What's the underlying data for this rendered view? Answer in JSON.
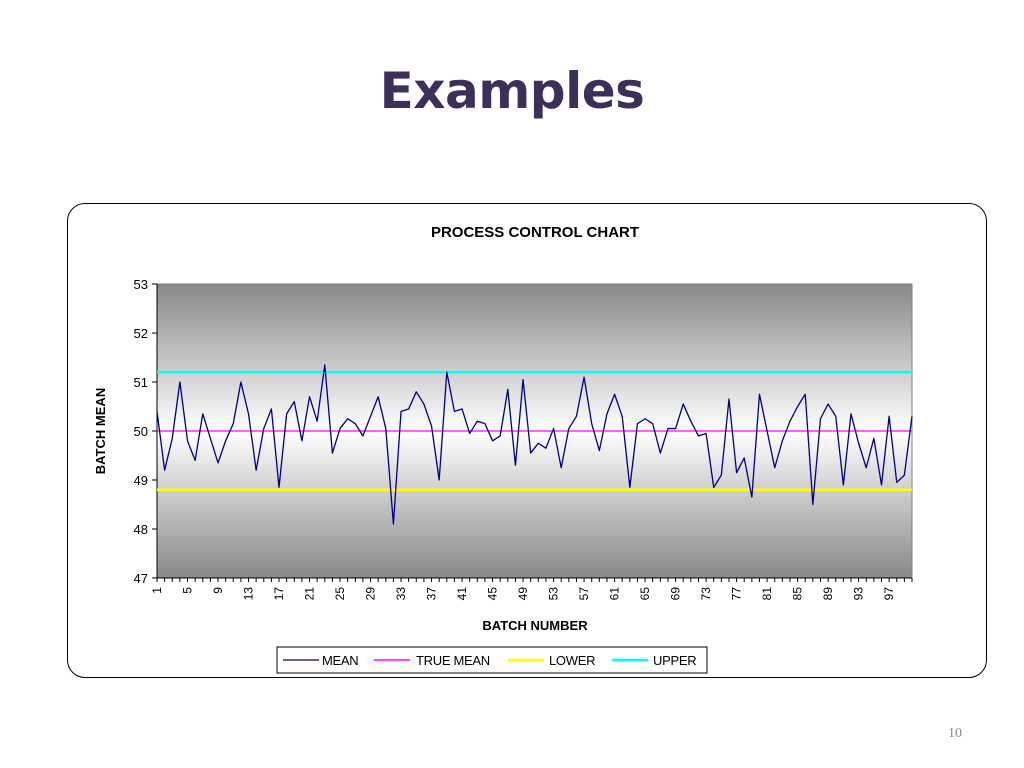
{
  "slide": {
    "title": "Examples",
    "page_number": "10"
  },
  "chart_data": {
    "type": "line",
    "title": "PROCESS CONTROL CHART",
    "xlabel": "BATCH NUMBER",
    "ylabel": "BATCH MEAN",
    "ylim": [
      47,
      53
    ],
    "yticks": [
      47,
      48,
      49,
      50,
      51,
      52,
      53
    ],
    "xlim": [
      1,
      100
    ],
    "xtick_labels": [
      1,
      5,
      9,
      13,
      17,
      21,
      25,
      29,
      33,
      37,
      41,
      45,
      49,
      53,
      57,
      61,
      65,
      69,
      73,
      77,
      81,
      85,
      89,
      93,
      97
    ],
    "legend_position": "bottom",
    "grid": false,
    "background": "gradient-gray",
    "x": [
      1,
      2,
      3,
      4,
      5,
      6,
      7,
      8,
      9,
      10,
      11,
      12,
      13,
      14,
      15,
      16,
      17,
      18,
      19,
      20,
      21,
      22,
      23,
      24,
      25,
      26,
      27,
      28,
      29,
      30,
      31,
      32,
      33,
      34,
      35,
      36,
      37,
      38,
      39,
      40,
      41,
      42,
      43,
      44,
      45,
      46,
      47,
      48,
      49,
      50,
      51,
      52,
      53,
      54,
      55,
      56,
      57,
      58,
      59,
      60,
      61,
      62,
      63,
      64,
      65,
      66,
      67,
      68,
      69,
      70,
      71,
      72,
      73,
      74,
      75,
      76,
      77,
      78,
      79,
      80,
      81,
      82,
      83,
      84,
      85,
      86,
      87,
      88,
      89,
      90,
      91,
      92,
      93,
      94,
      95,
      96,
      97,
      98,
      99,
      100
    ],
    "series": [
      {
        "name": "MEAN",
        "color": "#000080",
        "values": [
          50.4,
          49.2,
          49.85,
          51.0,
          49.8,
          49.4,
          50.35,
          49.85,
          49.35,
          49.8,
          50.15,
          51.0,
          50.35,
          49.2,
          50.05,
          50.45,
          48.85,
          50.35,
          50.6,
          49.8,
          50.7,
          50.2,
          51.35,
          49.55,
          50.05,
          50.25,
          50.15,
          49.9,
          50.3,
          50.7,
          50.05,
          48.1,
          50.4,
          50.45,
          50.8,
          50.55,
          50.1,
          49.0,
          51.2,
          50.4,
          50.45,
          49.95,
          50.2,
          50.15,
          49.8,
          49.9,
          50.85,
          49.3,
          51.05,
          49.55,
          49.75,
          49.65,
          50.05,
          49.25,
          50.05,
          50.3,
          51.1,
          50.15,
          49.6,
          50.35,
          50.75,
          50.3,
          48.85,
          50.15,
          50.25,
          50.15,
          49.55,
          50.05,
          50.05,
          50.55,
          50.2,
          49.9,
          49.95,
          48.85,
          49.1,
          50.65,
          49.15,
          49.45,
          48.65,
          50.75,
          50.0,
          49.25,
          49.8,
          50.2,
          50.5,
          50.75,
          48.5,
          50.25,
          50.55,
          50.3,
          48.9,
          50.35,
          49.75,
          49.25,
          49.85,
          48.9,
          50.3,
          48.95,
          49.1,
          50.3
        ]
      },
      {
        "name": "TRUE MEAN",
        "color": "#ff00ff",
        "value": 50.0
      },
      {
        "name": "LOWER",
        "color": "#ffff00",
        "value": 48.8
      },
      {
        "name": "UPPER",
        "color": "#00ffff",
        "value": 51.2
      }
    ]
  }
}
